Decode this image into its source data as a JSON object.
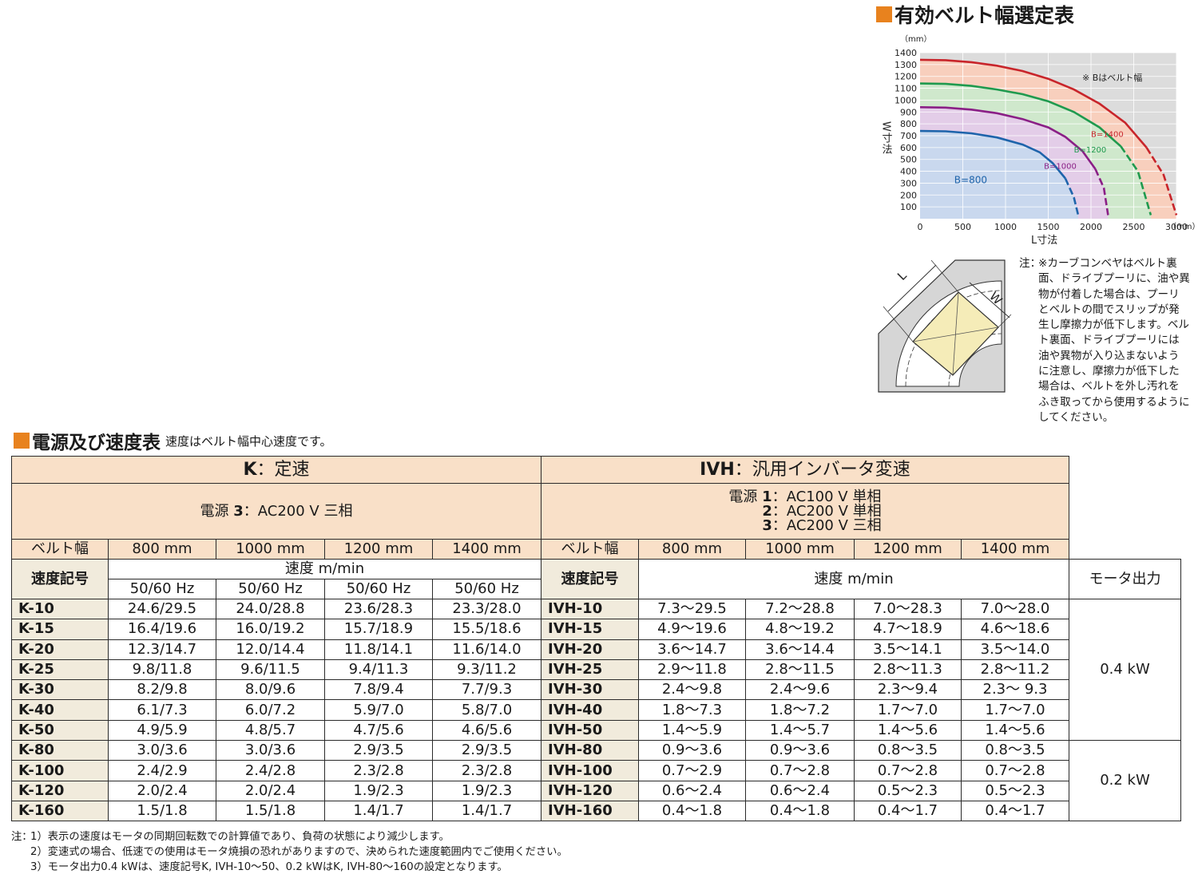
{
  "colors": {
    "accent": "#e8821e",
    "header_bg": "#f9e0c8",
    "code_bg": "#f1ebdc"
  },
  "belt_chart": {
    "title": "有効ベルト幅選定表",
    "note": "※ Bはベルト幅",
    "unit_y": "（mm）",
    "unit_x": "（mm）",
    "ylabel": "W寸法",
    "xlabel": "L寸法"
  },
  "chart_data": {
    "type": "area",
    "xlim": [
      0,
      3000
    ],
    "ylim": [
      0,
      1400
    ],
    "x_ticks": [
      "0",
      "500",
      "1000",
      "1500",
      "2000",
      "2500",
      "3000"
    ],
    "y_ticks": [
      "100",
      "200",
      "300",
      "400",
      "500",
      "600",
      "700",
      "800",
      "900",
      "1000",
      "1100",
      "1200",
      "1300",
      "1400"
    ],
    "grid": true,
    "series": [
      {
        "name": "B=1400",
        "color": "#c8252b",
        "fill": "#f8cfbd",
        "points": [
          [
            0,
            1340
          ],
          [
            300,
            1337
          ],
          [
            600,
            1320
          ],
          [
            900,
            1290
          ],
          [
            1200,
            1245
          ],
          [
            1500,
            1180
          ],
          [
            1800,
            1090
          ],
          [
            2100,
            970
          ],
          [
            2400,
            810
          ],
          [
            2650,
            600
          ],
          [
            2850,
            370
          ],
          [
            3000,
            30
          ]
        ]
      },
      {
        "name": "B=1200",
        "color": "#1f9a4e",
        "fill": "#cfe8cc",
        "points": [
          [
            0,
            1140
          ],
          [
            300,
            1137
          ],
          [
            600,
            1120
          ],
          [
            900,
            1090
          ],
          [
            1200,
            1050
          ],
          [
            1500,
            990
          ],
          [
            1800,
            900
          ],
          [
            2100,
            770
          ],
          [
            2350,
            610
          ],
          [
            2550,
            400
          ],
          [
            2700,
            30
          ]
        ]
      },
      {
        "name": "B=1000",
        "color": "#8a1f86",
        "fill": "#e3cde8",
        "points": [
          [
            0,
            940
          ],
          [
            300,
            937
          ],
          [
            600,
            920
          ],
          [
            900,
            890
          ],
          [
            1200,
            840
          ],
          [
            1500,
            770
          ],
          [
            1700,
            690
          ],
          [
            1900,
            570
          ],
          [
            2050,
            420
          ],
          [
            2150,
            260
          ],
          [
            2200,
            30
          ]
        ]
      },
      {
        "name": "B=800",
        "color": "#1e64ab",
        "fill": "#c9d8ee",
        "points": [
          [
            0,
            740
          ],
          [
            300,
            737
          ],
          [
            600,
            720
          ],
          [
            900,
            685
          ],
          [
            1200,
            625
          ],
          [
            1400,
            560
          ],
          [
            1550,
            470
          ],
          [
            1700,
            340
          ],
          [
            1800,
            180
          ],
          [
            1850,
            30
          ]
        ]
      }
    ]
  },
  "diagram": {
    "label_l": "L",
    "label_w": "W"
  },
  "caution": {
    "label": "注：",
    "text": "※カーブコンベヤはベルト裏面、ドライブプーリに、油や異物が付着した場合は、プーリとベルトの間でスリップが発生し摩擦力が低下します。ベルト裏面、ドライブプーリには油や異物が入り込まないように注意し、摩擦力が低下した場合は、ベルトを外し汚れをふき取ってから使用するようにしてください。"
  },
  "table": {
    "title": "電源及び速度表",
    "note": "速度はベルト幅中心速度です。",
    "k_code": "K",
    "k_label": "：定速",
    "ivh_code": "IVH",
    "ivh_label": "：汎用インバータ変速",
    "k_power": {
      "prefix": "電源 ",
      "num": "3",
      "text": "：AC200 V 三相"
    },
    "ivh_power": [
      {
        "prefix": "電源 ",
        "num": "1",
        "text": "：AC100 V 単相"
      },
      {
        "prefix": "",
        "num": "2",
        "text": "：AC200 V 単相"
      },
      {
        "prefix": "",
        "num": "3",
        "text": "：AC200 V 三相"
      }
    ],
    "belt_width_label": "ベルト幅",
    "widths": [
      "800 mm",
      "1000 mm",
      "1200 mm",
      "1400 mm"
    ],
    "speed_code_label": "速度記号",
    "speed_label": "速度 m/min",
    "hz_label": "50/60 Hz",
    "motor_label": "モータ出力",
    "motor_values": [
      "0.4 kW",
      "0.2 kW"
    ],
    "rows": [
      {
        "k": "K-10",
        "kv": [
          "24.6/29.5",
          "24.0/28.8",
          "23.6/28.3",
          "23.3/28.0"
        ],
        "ivh": "IVH-10",
        "iv": [
          "7.3～29.5",
          "7.2～28.8",
          "7.0～28.3",
          "7.0～28.0"
        ]
      },
      {
        "k": "K-15",
        "kv": [
          "16.4/19.6",
          "16.0/19.2",
          "15.7/18.9",
          "15.5/18.6"
        ],
        "ivh": "IVH-15",
        "iv": [
          "4.9～19.6",
          "4.8～19.2",
          "4.7～18.9",
          "4.6～18.6"
        ]
      },
      {
        "k": "K-20",
        "kv": [
          "12.3/14.7",
          "12.0/14.4",
          "11.8/14.1",
          "11.6/14.0"
        ],
        "ivh": "IVH-20",
        "iv": [
          "3.6～14.7",
          "3.6～14.4",
          "3.5～14.1",
          "3.5～14.0"
        ]
      },
      {
        "k": "K-25",
        "kv": [
          "9.8/11.8",
          "9.6/11.5",
          "9.4/11.3",
          "9.3/11.2"
        ],
        "ivh": "IVH-25",
        "iv": [
          "2.9～11.8",
          "2.8～11.5",
          "2.8～11.3",
          "2.8～11.2"
        ]
      },
      {
        "k": "K-30",
        "kv": [
          "8.2/9.8",
          "8.0/9.6",
          "7.8/9.4",
          "7.7/9.3"
        ],
        "ivh": "IVH-30",
        "iv": [
          "2.4～9.8",
          "2.4～9.6",
          "2.3～9.4",
          "2.3～ 9.3"
        ]
      },
      {
        "k": "K-40",
        "kv": [
          "6.1/7.3",
          "6.0/7.2",
          "5.9/7.0",
          "5.8/7.0"
        ],
        "ivh": "IVH-40",
        "iv": [
          "1.8～7.3",
          "1.8～7.2",
          "1.7～7.0",
          "1.7～7.0"
        ]
      },
      {
        "k": "K-50",
        "kv": [
          "4.9/5.9",
          "4.8/5.7",
          "4.7/5.6",
          "4.6/5.6"
        ],
        "ivh": "IVH-50",
        "iv": [
          "1.4～5.9",
          "1.4～5.7",
          "1.4～5.6",
          "1.4～5.6"
        ]
      },
      {
        "k": "K-80",
        "kv": [
          "3.0/3.6",
          "3.0/3.6",
          "2.9/3.5",
          "2.9/3.5"
        ],
        "ivh": "IVH-80",
        "iv": [
          "0.9～3.6",
          "0.9～3.6",
          "0.8～3.5",
          "0.8～3.5"
        ]
      },
      {
        "k": "K-100",
        "kv": [
          "2.4/2.9",
          "2.4/2.8",
          "2.3/2.8",
          "2.3/2.8"
        ],
        "ivh": "IVH-100",
        "iv": [
          "0.7～2.9",
          "0.7～2.8",
          "0.7～2.8",
          "0.7～2.8"
        ]
      },
      {
        "k": "K-120",
        "kv": [
          "2.0/2.4",
          "2.0/2.4",
          "1.9/2.3",
          "1.9/2.3"
        ],
        "ivh": "IVH-120",
        "iv": [
          "0.6～2.4",
          "0.6～2.4",
          "0.5～2.3",
          "0.5～2.3"
        ]
      },
      {
        "k": "K-160",
        "kv": [
          "1.5/1.8",
          "1.5/1.8",
          "1.4/1.7",
          "1.4/1.7"
        ],
        "ivh": "IVH-160",
        "iv": [
          "0.4～1.8",
          "0.4～1.8",
          "0.4～1.7",
          "0.4～1.7"
        ]
      }
    ]
  },
  "footnotes": {
    "lead": "注：",
    "items": [
      "1）表示の速度はモータの同期回転数での計算値であり、負荷の状態により減少します。",
      "2）変速式の場合、低速での使用はモータ焼損の恐れがありますので、決められた速度範囲内でご使用ください。",
      "3）モータ出力0.4 kWは、速度記号K, IVH-10～50、0.2 kWはK, IVH-80～160の設定となります。"
    ]
  }
}
